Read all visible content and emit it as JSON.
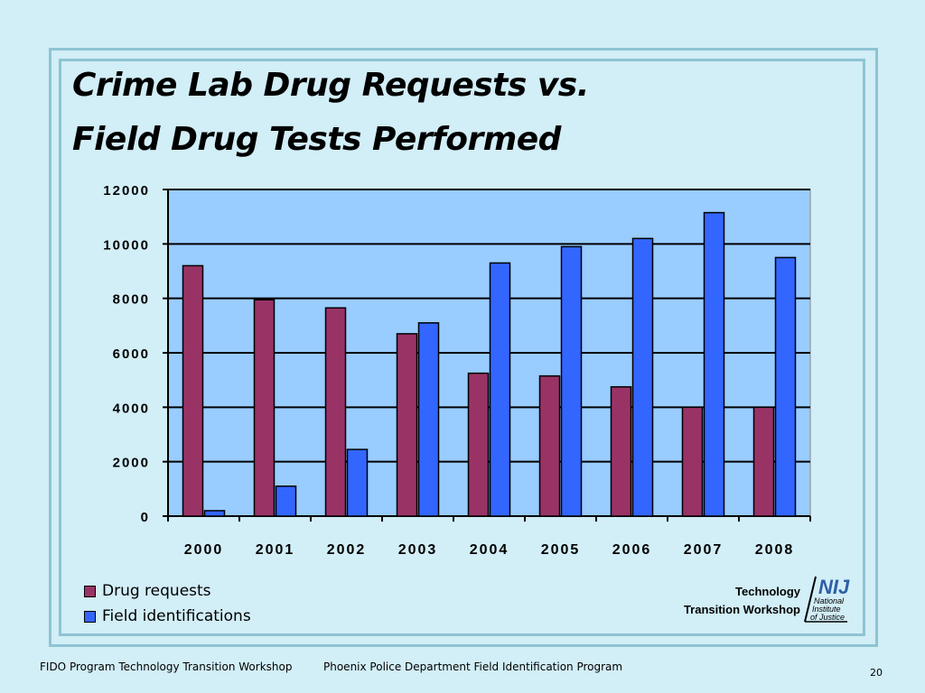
{
  "title": {
    "line1": "Crime Lab Drug Requests vs.",
    "line2": "Field Drug Tests Performed"
  },
  "chart_data": {
    "type": "bar",
    "categories": [
      "2000",
      "2001",
      "2002",
      "2003",
      "2004",
      "2005",
      "2006",
      "2007",
      "2008"
    ],
    "series": [
      {
        "name": "Drug requests",
        "color": "#993366",
        "values": [
          9200,
          7950,
          7650,
          6700,
          5250,
          5150,
          4750,
          4000,
          4000
        ]
      },
      {
        "name": "Field identifications",
        "color": "#3366ff",
        "values": [
          200,
          1100,
          2450,
          7100,
          9300,
          9900,
          10200,
          11150,
          9500
        ]
      }
    ],
    "ylim": [
      0,
      12000
    ],
    "yticks": [
      "0",
      "2000",
      "4000",
      "6000",
      "8000",
      "10000",
      "12000"
    ],
    "grid": true,
    "plot_background": "#99ccff",
    "legend_position": "bottom-left"
  },
  "legend": {
    "items": [
      {
        "label": "Drug requests",
        "color": "#993366"
      },
      {
        "label": "Field identifications",
        "color": "#3366ff"
      }
    ]
  },
  "workshop": {
    "line1": "Technology",
    "line2": "Transition Workshop"
  },
  "logo": {
    "text": "NIJ",
    "subtext": [
      "National",
      "Institute",
      "of Justice"
    ],
    "color": "#2f5fa7"
  },
  "footer": {
    "left": "FIDO Program Technology Transition Workshop",
    "center": "Phoenix Police Department Field Identification Program",
    "page": "20"
  }
}
